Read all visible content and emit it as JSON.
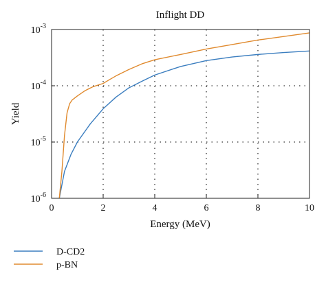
{
  "chart_data": {
    "type": "line",
    "title": "Inflight DD",
    "xlabel": "Energy (MeV)",
    "ylabel": "Yield",
    "xlim": [
      0,
      10
    ],
    "ylim": [
      1e-06,
      0.001
    ],
    "y_scale": "log",
    "x_ticks": [
      0,
      2,
      4,
      6,
      8,
      10
    ],
    "x_tick_labels": [
      "0",
      "2",
      "4",
      "6",
      "8",
      "10"
    ],
    "y_ticks": [
      1e-06,
      1e-05,
      0.0001,
      0.001
    ],
    "y_tick_labels": [
      {
        "base": "10",
        "exp": "-6"
      },
      {
        "base": "10",
        "exp": "-5"
      },
      {
        "base": "10",
        "exp": "-4"
      },
      {
        "base": "10",
        "exp": "-3"
      }
    ],
    "grid": "dotted, on",
    "legend_position": "bottom-left, below plot",
    "series": [
      {
        "name": "D-CD2",
        "color": "#3a7dbf",
        "x": [
          0.3,
          0.5,
          0.75,
          1.0,
          1.5,
          2.0,
          2.5,
          3.0,
          3.5,
          4.0,
          5.0,
          6.0,
          7.0,
          8.0,
          9.0,
          10.0
        ],
        "y": [
          1e-06,
          3e-06,
          6e-06,
          1e-05,
          2.1e-05,
          3.9e-05,
          6.3e-05,
          9.2e-05,
          0.00012,
          0.000155,
          0.00022,
          0.00028,
          0.000325,
          0.00036,
          0.00039,
          0.000415
        ]
      },
      {
        "name": "p-BN",
        "color": "#e08a2e",
        "x": [
          0.3,
          0.4,
          0.5,
          0.6,
          0.7,
          0.8,
          1.0,
          1.3,
          1.6,
          2.0,
          2.2,
          2.5,
          3.0,
          3.5,
          4.0,
          5.0,
          6.0,
          7.0,
          8.0,
          9.0,
          10.0
        ],
        "y": [
          1e-06,
          3e-06,
          1.3e-05,
          3.3e-05,
          4.8e-05,
          5.6e-05,
          6.6e-05,
          8.2e-05,
          9.6e-05,
          0.00011,
          0.000125,
          0.00015,
          0.000195,
          0.000245,
          0.00029,
          0.00036,
          0.00045,
          0.00054,
          0.00065,
          0.00075,
          0.00087
        ]
      }
    ]
  }
}
